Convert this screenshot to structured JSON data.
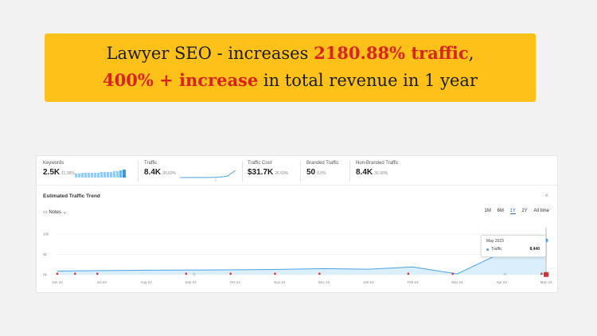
{
  "banner": {
    "line1_prefix": "Lawyer SEO -  increases ",
    "line1_highlight": "2180.88% traffic",
    "line1_suffix": ",",
    "line2_highlight": "400% + increase",
    "line2_suffix": " in total revenue in 1 year"
  },
  "metrics": [
    {
      "label": "Keywords",
      "value": "2.5K",
      "change": "11.38%"
    },
    {
      "label": "Traffic",
      "value": "8.4K",
      "change": "30.69%"
    },
    {
      "label": "Traffic Cost",
      "value": "$31.7K",
      "change": "26.69%"
    },
    {
      "label": "Branded Traffic",
      "value": "50",
      "change": "0.0%"
    },
    {
      "label": "Non-Branded Traffic",
      "value": "8.4K",
      "change": "30.90%"
    }
  ],
  "trend": {
    "title": "Estimated Traffic Trend",
    "notes_label": "Notes",
    "ranges": [
      "1M",
      "6M",
      "1Y",
      "2Y",
      "All time"
    ],
    "active_range": "1Y"
  },
  "chart_data": {
    "type": "area",
    "categories": [
      "Jun 22",
      "Jul 22",
      "Aug 22",
      "Sep 22",
      "Oct 22",
      "Nov 22",
      "Dec 22",
      "Jan 23",
      "Feb 23",
      "Mar 23",
      "Apr 23",
      "May 23"
    ],
    "series": [
      {
        "values": [
          900,
          1000,
          1100,
          1150,
          1200,
          1300,
          1500,
          1350,
          1900,
          200,
          5400,
          8440
        ]
      }
    ],
    "y_ticks": [
      "0k",
      "5k",
      "10k"
    ],
    "ylim": [
      0,
      10000
    ],
    "grid": true,
    "accent": "#4ba3e6",
    "fill": "#d7ecfb"
  },
  "tooltip": {
    "date": "May 2023",
    "series_name": "Traffic",
    "value": "8,440"
  }
}
